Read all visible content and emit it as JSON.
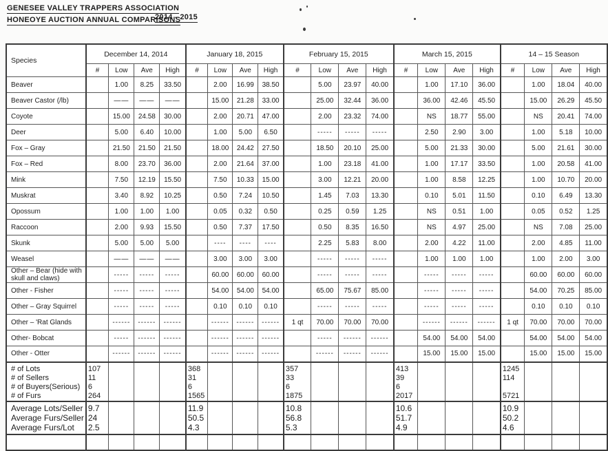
{
  "page": {
    "title_line1": "GENESEE VALLEY TRAPPERS ASSOCIATION",
    "title_line2": "HONEOYE AUCTION ANNUAL COMPARISONS",
    "season_label": "2014 - 2015"
  },
  "table": {
    "species_header": "Species",
    "sub_headers": [
      "#",
      "Low",
      "Ave",
      "High"
    ],
    "groups": [
      "December 14, 2014",
      "January 18, 2015",
      "February 15, 2015",
      "March 15, 2015",
      "14 – 15 Season"
    ],
    "rows": [
      {
        "species": "Beaver",
        "cells": [
          [
            "",
            "1.00",
            "8.25",
            "33.50"
          ],
          [
            "",
            "2.00",
            "16.99",
            "38.50"
          ],
          [
            "",
            "5.00",
            "23.97",
            "40.00"
          ],
          [
            "",
            "1.00",
            "17.10",
            "36.00"
          ],
          [
            "",
            "1.00",
            "18.04",
            "40.00"
          ]
        ]
      },
      {
        "species": "Beaver Castor (/lb)",
        "cells": [
          [
            "",
            "——",
            "——",
            "——"
          ],
          [
            "",
            "15.00",
            "21.28",
            "33.00"
          ],
          [
            "",
            "25.00",
            "32.44",
            "36.00"
          ],
          [
            "",
            "36.00",
            "42.46",
            "45.50"
          ],
          [
            "",
            "15.00",
            "26.29",
            "45.50"
          ]
        ]
      },
      {
        "species": "Coyote",
        "cells": [
          [
            "",
            "15.00",
            "24.58",
            "30.00"
          ],
          [
            "",
            "2.00",
            "20.71",
            "47.00"
          ],
          [
            "",
            "2.00",
            "23.32",
            "74.00"
          ],
          [
            "",
            "NS",
            "18.77",
            "55.00"
          ],
          [
            "",
            "NS",
            "20.41",
            "74.00"
          ]
        ]
      },
      {
        "species": "Deer",
        "cells": [
          [
            "",
            "5.00",
            "6.40",
            "10.00"
          ],
          [
            "",
            "1.00",
            "5.00",
            "6.50"
          ],
          [
            "",
            "-----",
            "-----",
            "-----"
          ],
          [
            "",
            "2.50",
            "2.90",
            "3.00"
          ],
          [
            "",
            "1.00",
            "5.18",
            "10.00"
          ]
        ]
      },
      {
        "species": "Fox – Gray",
        "cells": [
          [
            "",
            "21.50",
            "21.50",
            "21.50"
          ],
          [
            "",
            "18.00",
            "24.42",
            "27.50"
          ],
          [
            "",
            "18.50",
            "20.10",
            "25.00"
          ],
          [
            "",
            "5.00",
            "21.33",
            "30.00"
          ],
          [
            "",
            "5.00",
            "21.61",
            "30.00"
          ]
        ]
      },
      {
        "species": "Fox – Red",
        "cells": [
          [
            "",
            "8.00",
            "23.70",
            "36.00"
          ],
          [
            "",
            "2.00",
            "21.64",
            "37.00"
          ],
          [
            "",
            "1.00",
            "23.18",
            "41.00"
          ],
          [
            "",
            "1.00",
            "17.17",
            "33.50"
          ],
          [
            "",
            "1.00",
            "20.58",
            "41.00"
          ]
        ]
      },
      {
        "species": "Mink",
        "cells": [
          [
            "",
            "7.50",
            "12.19",
            "15.50"
          ],
          [
            "",
            "7.50",
            "10.33",
            "15.00"
          ],
          [
            "",
            "3.00",
            "12.21",
            "20.00"
          ],
          [
            "",
            "1.00",
            "8.58",
            "12.25"
          ],
          [
            "",
            "1.00",
            "10.70",
            "20.00"
          ]
        ]
      },
      {
        "species": "Muskrat",
        "cells": [
          [
            "",
            "3.40",
            "8.92",
            "10.25"
          ],
          [
            "",
            "0.50",
            "7.24",
            "10.50"
          ],
          [
            "",
            "1.45",
            "7.03",
            "13.30"
          ],
          [
            "",
            "0.10",
            "5.01",
            "11.50"
          ],
          [
            "",
            "0.10",
            "6.49",
            "13.30"
          ]
        ]
      },
      {
        "species": "Opossum",
        "cells": [
          [
            "",
            "1.00",
            "1.00",
            "1.00"
          ],
          [
            "",
            "0.05",
            "0.32",
            "0.50"
          ],
          [
            "",
            "0.25",
            "0.59",
            "1.25"
          ],
          [
            "",
            "NS",
            "0.51",
            "1.00"
          ],
          [
            "",
            "0.05",
            "0.52",
            "1.25"
          ]
        ]
      },
      {
        "species": "Raccoon",
        "cells": [
          [
            "",
            "2.00",
            "9.93",
            "15.50"
          ],
          [
            "",
            "0.50",
            "7.37",
            "17.50"
          ],
          [
            "",
            "0.50",
            "8.35",
            "16.50"
          ],
          [
            "",
            "NS",
            "4.97",
            "25.00"
          ],
          [
            "",
            "NS",
            "7.08",
            "25.00"
          ]
        ]
      },
      {
        "species": "Skunk",
        "cells": [
          [
            "",
            "5.00",
            "5.00",
            "5.00"
          ],
          [
            "",
            "----",
            "----",
            "----"
          ],
          [
            "",
            "2.25",
            "5.83",
            "8.00"
          ],
          [
            "",
            "2.00",
            "4.22",
            "11.00"
          ],
          [
            "",
            "2.00",
            "4.85",
            "11.00"
          ]
        ]
      },
      {
        "species": "Weasel",
        "cells": [
          [
            "",
            "——",
            "——",
            "——"
          ],
          [
            "",
            "3.00",
            "3.00",
            "3.00"
          ],
          [
            "",
            "-----",
            "-----",
            "-----"
          ],
          [
            "",
            "1.00",
            "1.00",
            "1.00"
          ],
          [
            "",
            "1.00",
            "2.00",
            "3.00"
          ]
        ]
      },
      {
        "species": "Other – Bear (hide with skull and claws)",
        "cells": [
          [
            "",
            "-----",
            "-----",
            "-----"
          ],
          [
            "",
            "60.00",
            "60.00",
            "60.00"
          ],
          [
            "",
            "-----",
            "-----",
            "-----"
          ],
          [
            "",
            "-----",
            "-----",
            "-----"
          ],
          [
            "",
            "60.00",
            "60.00",
            "60.00"
          ]
        ]
      },
      {
        "species": "Other - Fisher",
        "cells": [
          [
            "",
            "-----",
            "-----",
            "-----"
          ],
          [
            "",
            "54.00",
            "54.00",
            "54.00"
          ],
          [
            "",
            "65.00",
            "75.67",
            "85.00"
          ],
          [
            "",
            "-----",
            "-----",
            "-----"
          ],
          [
            "",
            "54.00",
            "70.25",
            "85.00"
          ]
        ]
      },
      {
        "species": "Other – Gray Squirrel",
        "cells": [
          [
            "",
            "-----",
            "-----",
            "-----"
          ],
          [
            "",
            "0.10",
            "0.10",
            "0.10"
          ],
          [
            "",
            "-----",
            "-----",
            "-----"
          ],
          [
            "",
            "-----",
            "-----",
            "-----"
          ],
          [
            "",
            "0.10",
            "0.10",
            "0.10"
          ]
        ]
      },
      {
        "species": "Other – 'Rat Glands",
        "cells": [
          [
            "",
            "------",
            "------",
            "------"
          ],
          [
            "",
            "------",
            "------",
            "------"
          ],
          [
            "1 qt",
            "70.00",
            "70.00",
            "70.00"
          ],
          [
            "",
            "------",
            "------",
            "------"
          ],
          [
            "1 qt",
            "70.00",
            "70.00",
            "70.00"
          ]
        ]
      },
      {
        "species": "Other- Bobcat",
        "cells": [
          [
            "",
            "-----",
            "------",
            "------"
          ],
          [
            "",
            "------",
            "------",
            "------"
          ],
          [
            "",
            "-----",
            "------",
            "------"
          ],
          [
            "",
            "54.00",
            "54.00",
            "54.00"
          ],
          [
            "",
            "54.00",
            "54.00",
            "54.00"
          ]
        ]
      },
      {
        "species": "Other - Otter",
        "cells": [
          [
            "",
            "------",
            "------",
            "------"
          ],
          [
            "",
            "------",
            "------",
            "------"
          ],
          [
            "",
            "------",
            "------",
            "------"
          ],
          [
            "",
            "15.00",
            "15.00",
            "15.00"
          ],
          [
            "",
            "15.00",
            "15.00",
            "15.00"
          ]
        ]
      }
    ],
    "stats": {
      "labels": [
        "# of Lots",
        "# of Sellers",
        "# of Buyers(Serious)",
        "# of Furs"
      ],
      "values": [
        [
          "107",
          "11",
          "6",
          "264"
        ],
        [
          "368",
          "31",
          "6",
          "1565"
        ],
        [
          "357",
          "33",
          "6",
          "1875"
        ],
        [
          "413",
          "39",
          "6",
          "2017"
        ],
        [
          "1245",
          "114",
          "",
          "5721"
        ]
      ]
    },
    "averages": {
      "labels": [
        "Average Lots/Seller",
        "Average Furs/Seller",
        "Average Furs/Lot"
      ],
      "values": [
        [
          "9.7",
          "24",
          "2.5"
        ],
        [
          "11.9",
          "50.5",
          "4.3"
        ],
        [
          "10.8",
          "56.8",
          "5.3"
        ],
        [
          "10.6",
          "51.7",
          "4.9"
        ],
        [
          "10.9",
          "50.2",
          "4.6"
        ]
      ]
    }
  }
}
